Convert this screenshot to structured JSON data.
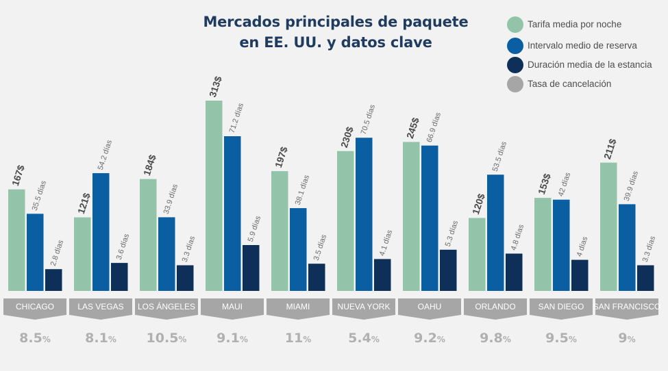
{
  "chart_data": {
    "type": "bar",
    "title_lines": [
      "Mercados principales de paquete",
      "en EE. UU. y datos clave"
    ],
    "categories": [
      "CHICAGO",
      "LAS VEGAS",
      "LOS ÁNGELES",
      "MAUI",
      "MIAMI",
      "NUEVA YORK",
      "OAHU",
      "ORLANDO",
      "SAN DIEGO",
      "SAN FRANCISCO"
    ],
    "series": [
      {
        "name": "Tarifa media por noche",
        "color": "#93c4a9",
        "values": [
          167,
          121,
          184,
          313,
          197,
          230,
          245,
          120,
          153,
          211
        ],
        "labels": [
          "167$",
          "121$",
          "184$",
          "313$",
          "197$",
          "230$",
          "245$",
          "120$",
          "153$",
          "211$"
        ]
      },
      {
        "name": "Intervalo medio de reserva",
        "color": "#0a5fa3",
        "values": [
          35.5,
          54.2,
          33.9,
          71.2,
          38.1,
          70.5,
          66.9,
          53.5,
          42,
          39.9
        ],
        "labels": [
          "35.5 días",
          "54.2 días",
          "33.9 días",
          "71.2 días",
          "38.1 días",
          "70.5 días",
          "66.9 días",
          "53.5 días",
          "42 días",
          "39.9 días"
        ]
      },
      {
        "name": "Duración media de la estancia",
        "color": "#0e2f57",
        "values": [
          2.8,
          3.6,
          3.3,
          5.9,
          3.5,
          4.1,
          5.3,
          4.8,
          4,
          3.3
        ],
        "labels": [
          "2.8 días",
          "3.6 días",
          "3.3 días",
          "5.9 días",
          "3.5 días",
          "4.1 días",
          "5.3 días",
          "4.8 días",
          "4 días",
          "3.3 días"
        ]
      },
      {
        "name": "Tasa de cancelación",
        "color": "#a6a6a6",
        "values": [
          8.5,
          8.1,
          10.5,
          9.1,
          11,
          5.4,
          9.2,
          9.8,
          9.5,
          9
        ],
        "labels": [
          "8.5",
          "8.1",
          "10.5",
          "9.1",
          "11",
          "5.4",
          "9.2",
          "9.8",
          "9.5",
          "9"
        ],
        "unit": "%"
      }
    ],
    "legend_position": "top-right",
    "grid": false
  }
}
